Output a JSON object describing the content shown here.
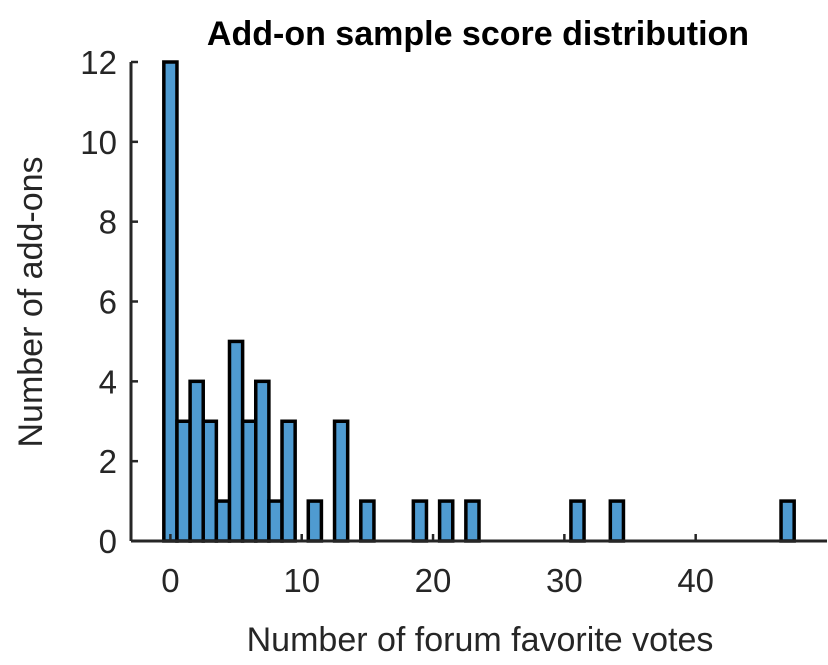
{
  "chart_data": {
    "type": "bar",
    "title": "Add-on sample score distribution",
    "xlabel": "Number of forum favorite votes",
    "ylabel": "Number of add-ons",
    "bin_width": 1,
    "x": [
      0,
      1,
      2,
      3,
      4,
      5,
      6,
      7,
      8,
      9,
      10,
      11,
      12,
      13,
      14,
      15,
      16,
      17,
      18,
      19,
      20,
      21,
      22,
      23,
      24,
      25,
      26,
      27,
      28,
      29,
      30,
      31,
      32,
      33,
      34,
      35,
      36,
      37,
      38,
      39,
      40,
      41,
      42,
      43,
      44,
      45,
      46,
      47
    ],
    "values": [
      12,
      3,
      4,
      3,
      1,
      5,
      3,
      4,
      1,
      3,
      0,
      1,
      0,
      3,
      0,
      1,
      0,
      0,
      0,
      1,
      0,
      1,
      0,
      1,
      0,
      0,
      0,
      0,
      0,
      0,
      0,
      1,
      0,
      0,
      1,
      0,
      0,
      0,
      0,
      0,
      0,
      0,
      0,
      0,
      0,
      0,
      0,
      1
    ],
    "xlim": [
      -3,
      50
    ],
    "ylim": [
      0,
      12
    ],
    "x_ticks": [
      0,
      10,
      20,
      30,
      40
    ],
    "y_ticks": [
      0,
      2,
      4,
      6,
      8,
      10,
      12
    ],
    "grid": false,
    "colors": {
      "bar_fill": "#4f9bd1",
      "bar_edge": "#000000",
      "axis": "#262626"
    }
  }
}
